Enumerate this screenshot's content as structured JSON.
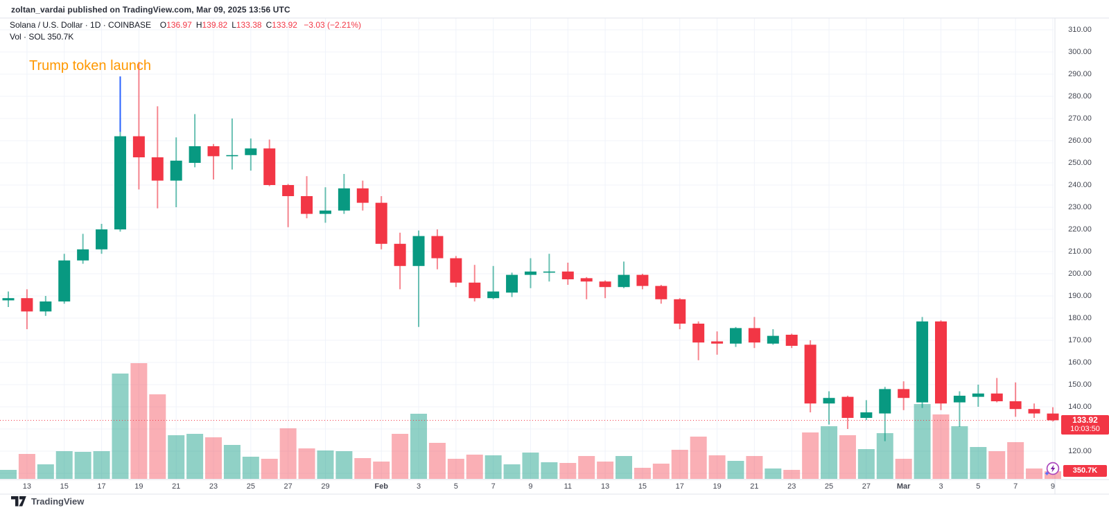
{
  "attribution": "zoltan_vardai published on TradingView.com, Mar 09, 2025 13:56 UTC",
  "legend": {
    "symbol_line": "Solana / U.S. Dollar · 1D · COINBASE",
    "ohlc": [
      {
        "k": "O",
        "v": "136.97"
      },
      {
        "k": "H",
        "v": "139.82"
      },
      {
        "k": "L",
        "v": "133.38"
      },
      {
        "k": "C",
        "v": "133.92"
      }
    ],
    "change": "−3.03 (−2.21%)",
    "vol_label": "Vol · SOL",
    "vol_value": "350.7K"
  },
  "annotation": {
    "text": "Trump token launch"
  },
  "axis_labels": {
    "price_label": "133.92",
    "countdown": "10:03:50",
    "volume_label": "350.7K"
  },
  "footer": {
    "brand": "TradingView"
  },
  "colors": {
    "up": "#089981",
    "down": "#f23645",
    "vol_up": "rgba(8,153,129,0.45)",
    "vol_down": "rgba(242,54,69,0.40)",
    "grid": "#f0f3fa",
    "axis_border": "#e0e3eb",
    "annotation_orange": "#ff9800",
    "annotation_blue": "#2962ff",
    "label_text": "#434651"
  },
  "chart_data": {
    "type": "candlestick",
    "title": "Solana / U.S. Dollar · 1D · COINBASE",
    "legend_ohlc": {
      "open": 136.97,
      "high": 139.82,
      "low": 133.38,
      "close": 133.92,
      "change": -3.03,
      "change_pct": -2.21
    },
    "current_price": 133.92,
    "price_axis": {
      "min": 110,
      "max": 310,
      "step": 10,
      "tick_labels": [
        "310.00",
        "300.00",
        "290.00",
        "280.00",
        "270.00",
        "260.00",
        "250.00",
        "240.00",
        "230.00",
        "220.00",
        "210.00",
        "200.00",
        "190.00",
        "180.00",
        "170.00",
        "160.00",
        "150.00",
        "140.00",
        "130.00",
        "120.00",
        "110.00"
      ]
    },
    "time_ticks": [
      {
        "label": "13",
        "i": 1
      },
      {
        "label": "15",
        "i": 3
      },
      {
        "label": "17",
        "i": 5
      },
      {
        "label": "19",
        "i": 7
      },
      {
        "label": "21",
        "i": 9
      },
      {
        "label": "23",
        "i": 11
      },
      {
        "label": "25",
        "i": 13
      },
      {
        "label": "27",
        "i": 15
      },
      {
        "label": "29",
        "i": 17
      },
      {
        "label": "Feb",
        "i": 20,
        "month": true
      },
      {
        "label": "3",
        "i": 22
      },
      {
        "label": "5",
        "i": 24
      },
      {
        "label": "7",
        "i": 26
      },
      {
        "label": "9",
        "i": 28
      },
      {
        "label": "11",
        "i": 30
      },
      {
        "label": "13",
        "i": 32
      },
      {
        "label": "15",
        "i": 34
      },
      {
        "label": "17",
        "i": 36
      },
      {
        "label": "19",
        "i": 38
      },
      {
        "label": "21",
        "i": 40
      },
      {
        "label": "23",
        "i": 42
      },
      {
        "label": "25",
        "i": 44
      },
      {
        "label": "27",
        "i": 46
      },
      {
        "label": "Mar",
        "i": 48,
        "month": true
      },
      {
        "label": "3",
        "i": 50
      },
      {
        "label": "5",
        "i": 52
      },
      {
        "label": "7",
        "i": 54
      },
      {
        "label": "9",
        "i": 56
      }
    ],
    "annotation_line": {
      "index": 6,
      "from_price": 264,
      "to_price": 289
    },
    "candle_fields": [
      "date",
      "open",
      "high",
      "low",
      "close",
      "volume_height_px"
    ],
    "candles": [
      [
        "Jan 12",
        188,
        192,
        185,
        189,
        13
      ],
      [
        "Jan 13",
        189,
        193,
        175,
        183,
        36
      ],
      [
        "Jan 14",
        183,
        190,
        181,
        187.5,
        21
      ],
      [
        "Jan 15",
        187.5,
        209,
        186.5,
        206,
        40
      ],
      [
        "Jan 16",
        206,
        218,
        204.5,
        211,
        39
      ],
      [
        "Jan 17",
        211,
        222.5,
        209,
        220,
        40
      ],
      [
        "Jan 18",
        220,
        270,
        219,
        262,
        152
      ],
      [
        "Jan 19",
        262,
        295.5,
        238,
        252.5,
        167
      ],
      [
        "Jan 20",
        252.5,
        275.5,
        229.5,
        242,
        122
      ],
      [
        "Jan 21",
        242,
        261.5,
        230,
        251,
        63
      ],
      [
        "Jan 22",
        250,
        272,
        248,
        257.5,
        65
      ],
      [
        "Jan 23",
        257.5,
        258.5,
        242.5,
        253,
        60
      ],
      [
        "Jan 24",
        253,
        270,
        247,
        253.5,
        49
      ],
      [
        "Jan 25",
        253.5,
        261,
        246.5,
        256.5,
        32
      ],
      [
        "Jan 26",
        256.5,
        260.5,
        239.5,
        240,
        29
      ],
      [
        "Jan 27",
        240,
        240.5,
        221,
        235,
        73
      ],
      [
        "Jan 28",
        235,
        244,
        225,
        227,
        44
      ],
      [
        "Jan 29",
        227,
        239,
        223,
        228.5,
        41
      ],
      [
        "Jan 30",
        228.5,
        245,
        227,
        238.5,
        40
      ],
      [
        "Jan 31",
        238.5,
        242,
        228.5,
        232,
        30
      ],
      [
        "Feb 1",
        232,
        235,
        211,
        213.5,
        25
      ],
      [
        "Feb 2",
        213.5,
        218.5,
        193,
        203.5,
        65
      ],
      [
        "Feb 3",
        203.5,
        219.5,
        176,
        217,
        94
      ],
      [
        "Feb 4",
        217,
        220,
        202,
        207,
        52
      ],
      [
        "Feb 5",
        207,
        208,
        194,
        196,
        29
      ],
      [
        "Feb 6",
        196,
        204,
        187.5,
        189,
        35
      ],
      [
        "Feb 7",
        189,
        203.5,
        188.5,
        192,
        34
      ],
      [
        "Feb 8",
        191.5,
        200.5,
        189.5,
        199.5,
        21
      ],
      [
        "Feb 9",
        199.5,
        207,
        193.5,
        201,
        38
      ],
      [
        "Feb 10",
        200.5,
        209,
        196.5,
        201,
        24
      ],
      [
        "Feb 11",
        201,
        205,
        195,
        197.5,
        23
      ],
      [
        "Feb 12",
        198,
        198.5,
        188.5,
        196.5,
        33
      ],
      [
        "Feb 13",
        196.5,
        197,
        189,
        194,
        25
      ],
      [
        "Feb 14",
        194,
        205.5,
        193.5,
        199.5,
        33
      ],
      [
        "Feb 15",
        199.5,
        200,
        193,
        194.5,
        16
      ],
      [
        "Feb 16",
        194.5,
        195,
        186.5,
        188.5,
        22
      ],
      [
        "Feb 17",
        188.5,
        189,
        175,
        177.5,
        42
      ],
      [
        "Feb 18",
        177.5,
        178.5,
        161,
        169,
        61
      ],
      [
        "Feb 19",
        169.5,
        174,
        163.5,
        168.5,
        34
      ],
      [
        "Feb 20",
        168.5,
        176,
        167,
        175.5,
        26
      ],
      [
        "Feb 21",
        175.5,
        180.5,
        166.5,
        169,
        33
      ],
      [
        "Feb 22",
        168.5,
        175,
        168,
        172,
        15
      ],
      [
        "Feb 23",
        172.5,
        173,
        166.5,
        167.5,
        13
      ],
      [
        "Feb 24",
        168,
        170,
        137.5,
        141.5,
        67
      ],
      [
        "Feb 25",
        141.5,
        147,
        132,
        144,
        76
      ],
      [
        "Feb 26",
        144.5,
        145,
        130,
        135,
        63
      ],
      [
        "Feb 27",
        135,
        143,
        134,
        137.5,
        43
      ],
      [
        "Feb 28",
        137,
        149,
        124.5,
        148,
        66
      ],
      [
        "Mar 1",
        148,
        151.5,
        138.5,
        144,
        29
      ],
      [
        "Mar 2",
        142,
        180.5,
        139.5,
        178.5,
        108
      ],
      [
        "Mar 3",
        178.5,
        179,
        138.5,
        141.5,
        93
      ],
      [
        "Mar 4",
        142,
        147,
        131,
        145,
        76
      ],
      [
        "Mar 5",
        144.5,
        150,
        140,
        146,
        46
      ],
      [
        "Mar 6",
        146,
        153,
        142,
        142.5,
        40
      ],
      [
        "Mar 7",
        142.5,
        151,
        135.5,
        139,
        53
      ],
      [
        "Mar 8",
        139,
        141.5,
        135,
        137,
        15
      ],
      [
        "Mar 9",
        136.97,
        139.82,
        133.38,
        133.92,
        11
      ]
    ]
  }
}
